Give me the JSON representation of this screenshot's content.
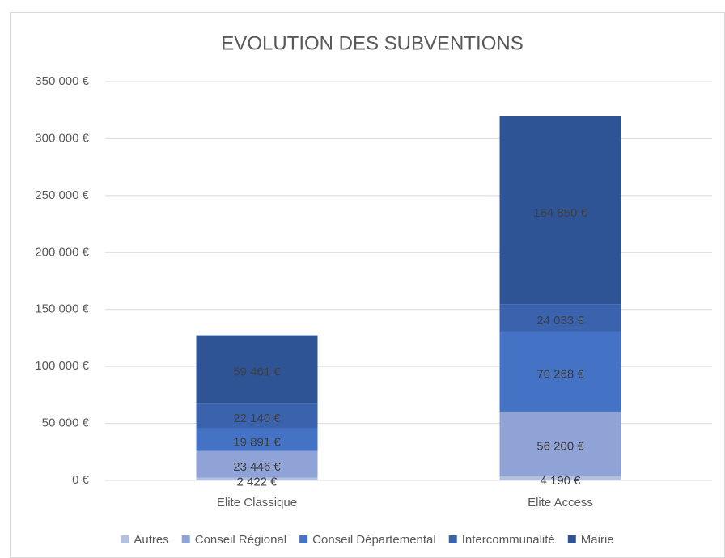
{
  "chart_data": {
    "type": "stacked_bar",
    "title": "EVOLUTION DES SUBVENTIONS",
    "categories": [
      "Elite Classique",
      "Elite Access"
    ],
    "series": [
      {
        "name": "Autres",
        "color": "#b4c0e0",
        "values": [
          2422,
          4190
        ],
        "value_labels": [
          "2 422 €",
          "4 190 €"
        ]
      },
      {
        "name": "Conseil Régional",
        "color": "#8fa3d6",
        "values": [
          23446,
          56200
        ],
        "value_labels": [
          "23 446 €",
          "56 200 €"
        ]
      },
      {
        "name": "Conseil Départemental",
        "color": "#4472c4",
        "values": [
          19891,
          70268
        ],
        "value_labels": [
          "19 891 €",
          "70 268 €"
        ]
      },
      {
        "name": "Intercommunalité",
        "color": "#3a62ad",
        "values": [
          22140,
          24033
        ],
        "value_labels": [
          "22 140 €",
          "24 033 €"
        ]
      },
      {
        "name": "Mairie",
        "color": "#2f5496",
        "values": [
          59461,
          164850
        ],
        "value_labels": [
          "59 461 €",
          "164 850 €"
        ]
      }
    ],
    "ylim": [
      0,
      350000
    ],
    "yticks": [
      {
        "value": 0,
        "label": "0 €"
      },
      {
        "value": 50000,
        "label": "50 000 €"
      },
      {
        "value": 100000,
        "label": "100 000 €"
      },
      {
        "value": 150000,
        "label": "150 000 €"
      },
      {
        "value": 200000,
        "label": "200 000 €"
      },
      {
        "value": 250000,
        "label": "250 000 €"
      },
      {
        "value": 300000,
        "label": "300 000 €"
      },
      {
        "value": 350000,
        "label": "350 000 €"
      }
    ],
    "grid": true,
    "legend": "bottom"
  }
}
